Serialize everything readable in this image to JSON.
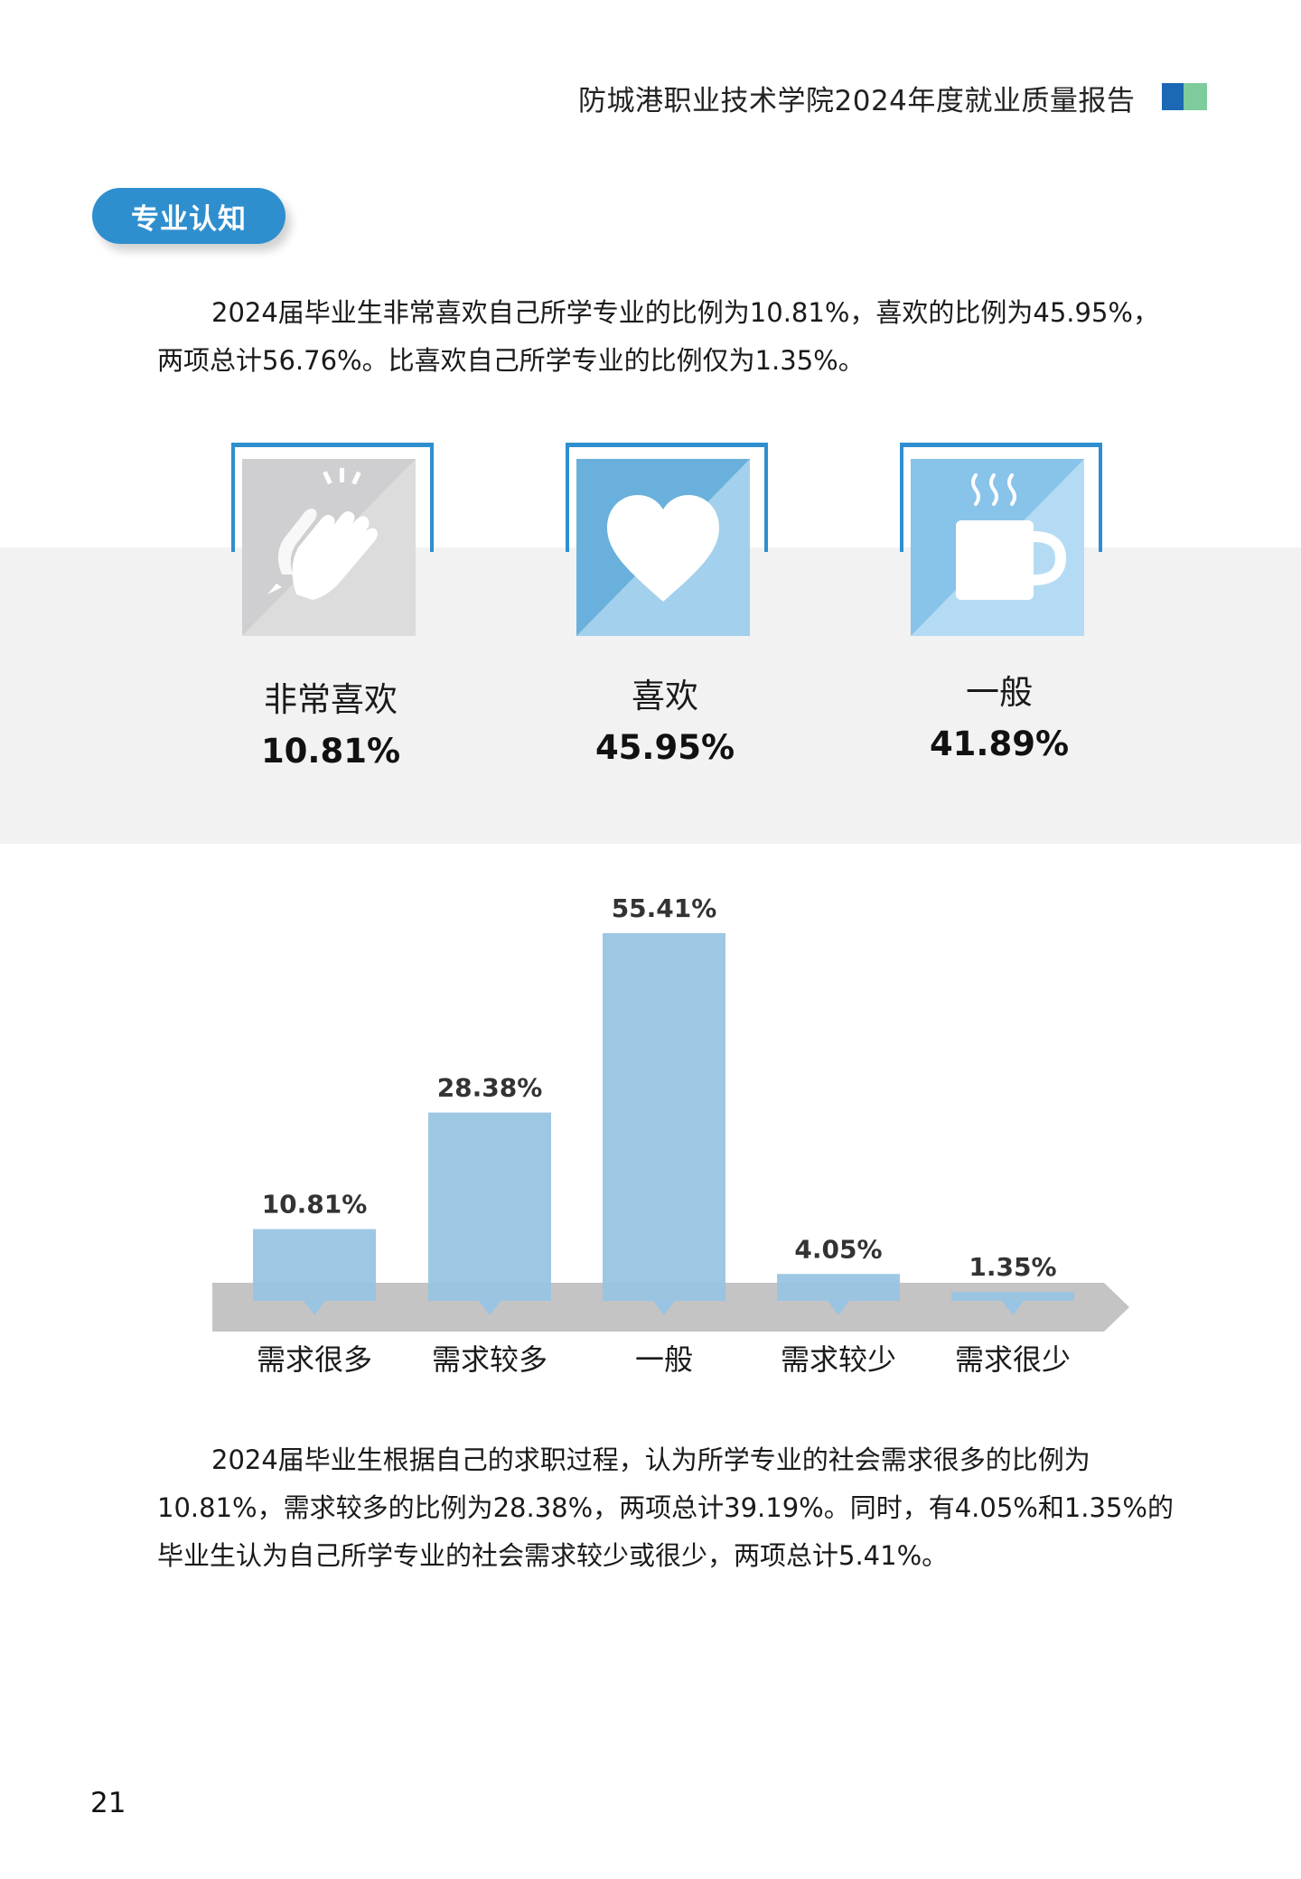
{
  "header": {
    "title": "防城港职业技术学院2024年度就业质量报告",
    "logo_colors": [
      "#1b68b4",
      "#7ecb9b"
    ]
  },
  "section": {
    "title": "专业认知"
  },
  "para1": "2024届毕业生非常喜欢自己所学专业的比例为10.81%，喜欢的比例为45.95%，两项总计56.76%。比喜欢自己所学专业的比例仅为1.35%。",
  "cards": [
    {
      "label": "非常喜欢",
      "value": "10.81%",
      "icon": "clapping-hands-icon",
      "colors": [
        "#cfcfd1",
        "#dcdcdd"
      ]
    },
    {
      "label": "喜欢",
      "value": "45.95%",
      "icon": "heart-icon",
      "colors": [
        "#6ab0dc",
        "#a3d0ec"
      ]
    },
    {
      "label": "一般",
      "value": "41.89%",
      "icon": "hot-mug-icon",
      "colors": [
        "#88c3ea",
        "#b4dbf3"
      ]
    }
  ],
  "chart_data": {
    "type": "bar",
    "categories": [
      "需求很多",
      "需求较多",
      "一般",
      "需求较少",
      "需求很少"
    ],
    "values": [
      10.81,
      28.38,
      55.41,
      4.05,
      1.35
    ],
    "value_labels": [
      "10.81%",
      "28.38%",
      "55.41%",
      "4.05%",
      "1.35%"
    ],
    "unit": "%",
    "ylim": [
      0,
      55.41
    ],
    "grid": false,
    "legend": "none",
    "bar_color": "#99c4e3",
    "axis_color": "#c4c4c4",
    "title": "",
    "xlabel": "",
    "ylabel": ""
  },
  "para2": "2024届毕业生根据自己的求职过程，认为所学专业的社会需求很多的比例为10.81%，需求较多的比例为28.38%，两项总计39.19%。同时，有4.05%和1.35%的毕业生认为自己所学专业的社会需求较少或很少，两项总计5.41%。",
  "page_number": "21"
}
